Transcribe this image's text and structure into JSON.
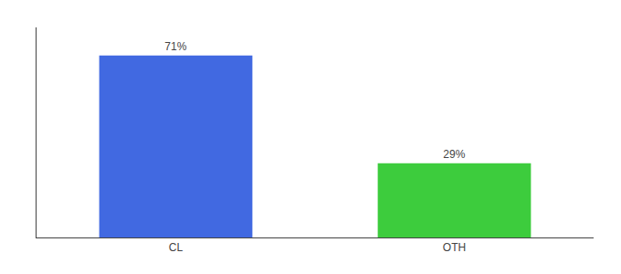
{
  "chart_data": {
    "type": "bar",
    "categories": [
      "CL",
      "OTH"
    ],
    "values": [
      71,
      29
    ],
    "value_labels": [
      "71%",
      "29%"
    ],
    "colors": [
      "#4169e1",
      "#3dcc3d"
    ],
    "ylim": [
      0,
      82
    ],
    "yticks": [],
    "grid": false,
    "data_labels": true,
    "tick_labels": "x"
  }
}
